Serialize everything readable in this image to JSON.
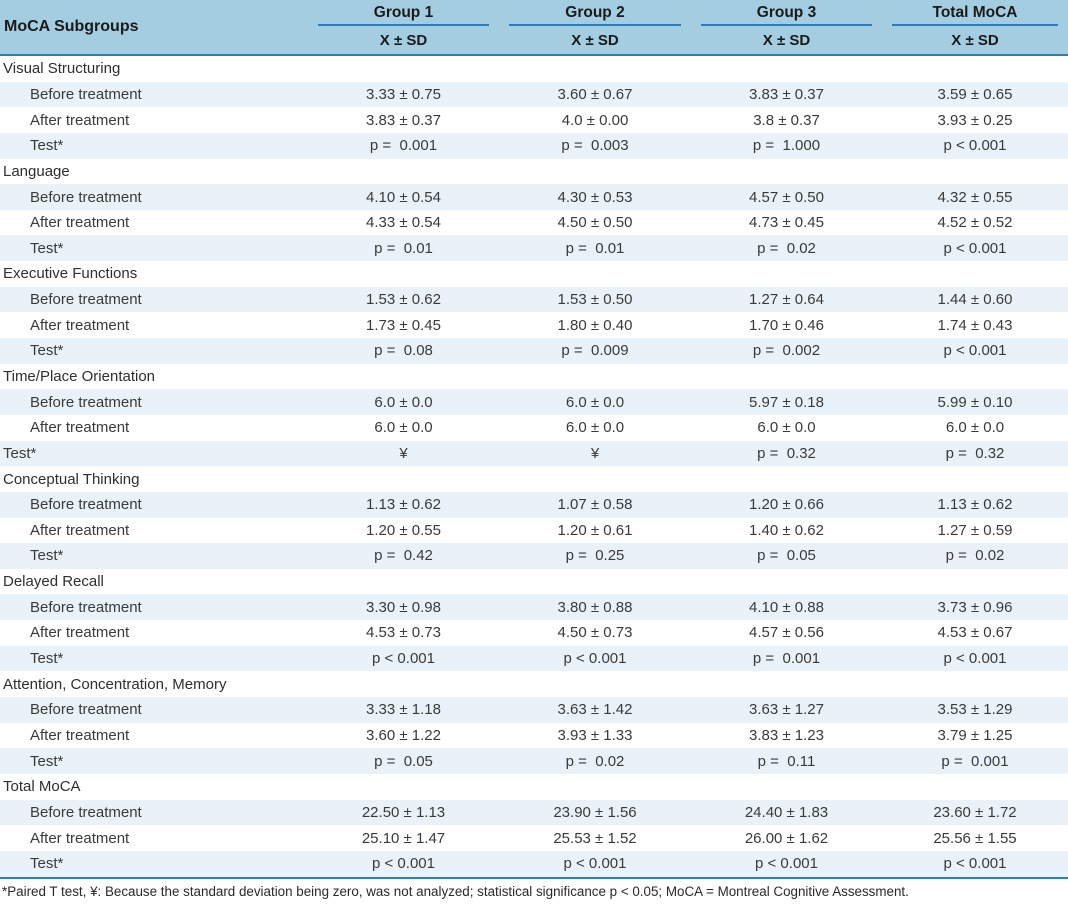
{
  "colors": {
    "header_bg": "#a5cde2",
    "stripe_bg": "#e9f2f8",
    "group_underline": "#2e7cb4",
    "rule_teal": "#2a81ad",
    "text": "#3a3a3a",
    "heading_text": "#1a1a1a"
  },
  "table": {
    "corner_header": "MoCA Subgroups",
    "groups": [
      "Group 1",
      "Group 2",
      "Group 3",
      "Total MoCA"
    ],
    "subheader": "X ± SD",
    "row_labels": {
      "before": "Before treatment",
      "after": "After treatment",
      "test": "Test*"
    },
    "sections": [
      {
        "name": "Visual Structuring",
        "test_indented": true,
        "before": [
          "3.33 ± 0.75",
          "3.60 ± 0.67",
          "3.83 ± 0.37",
          "3.59 ± 0.65"
        ],
        "after": [
          "3.83 ± 0.37",
          "4.0 ± 0.00",
          "3.8 ± 0.37",
          "3.93 ± 0.25"
        ],
        "test": [
          "p =  0.001",
          "p =  0.003",
          "p =  1.000",
          "p < 0.001"
        ]
      },
      {
        "name": "Language",
        "test_indented": true,
        "before": [
          "4.10 ± 0.54",
          "4.30 ± 0.53",
          "4.57 ± 0.50",
          "4.32 ± 0.55"
        ],
        "after": [
          "4.33 ± 0.54",
          "4.50 ± 0.50",
          "4.73 ± 0.45",
          "4.52 ± 0.52"
        ],
        "test": [
          "p =  0.01",
          "p =  0.01",
          "p =  0.02",
          "p < 0.001"
        ]
      },
      {
        "name": "Executive Functions",
        "test_indented": true,
        "before": [
          "1.53 ± 0.62",
          "1.53 ± 0.50",
          "1.27 ± 0.64",
          "1.44 ± 0.60"
        ],
        "after": [
          "1.73 ± 0.45",
          "1.80 ± 0.40",
          "1.70 ± 0.46",
          "1.74 ± 0.43"
        ],
        "test": [
          "p =  0.08",
          "p =  0.009",
          "p =  0.002",
          "p < 0.001"
        ]
      },
      {
        "name": "Time/Place Orientation",
        "test_indented": false,
        "before": [
          "6.0 ± 0.0",
          "6.0 ± 0.0",
          "5.97 ± 0.18",
          "5.99 ± 0.10"
        ],
        "after": [
          "6.0 ± 0.0",
          "6.0 ± 0.0",
          "6.0 ± 0.0",
          "6.0 ± 0.0"
        ],
        "test": [
          "¥",
          "¥",
          "p =  0.32",
          "p =  0.32"
        ]
      },
      {
        "name": "Conceptual Thinking",
        "test_indented": true,
        "before": [
          "1.13 ± 0.62",
          "1.07 ± 0.58",
          "1.20 ± 0.66",
          "1.13 ± 0.62"
        ],
        "after": [
          "1.20 ± 0.55",
          "1.20 ± 0.61",
          "1.40 ± 0.62",
          "1.27 ± 0.59"
        ],
        "test": [
          "p =  0.42",
          "p =  0.25",
          "p =  0.05",
          "p =  0.02"
        ]
      },
      {
        "name": "Delayed Recall",
        "test_indented": true,
        "before": [
          "3.30 ± 0.98",
          "3.80 ± 0.88",
          "4.10 ± 0.88",
          "3.73 ± 0.96"
        ],
        "after": [
          "4.53 ± 0.73",
          "4.50 ± 0.73",
          "4.57 ± 0.56",
          "4.53 ± 0.67"
        ],
        "test": [
          "p < 0.001",
          "p < 0.001",
          "p =  0.001",
          "p < 0.001"
        ]
      },
      {
        "name": "Attention, Concentration, Memory",
        "test_indented": true,
        "before": [
          "3.33 ± 1.18",
          "3.63 ± 1.42",
          "3.63 ± 1.27",
          "3.53 ± 1.29"
        ],
        "after": [
          "3.60 ± 1.22",
          "3.93 ± 1.33",
          "3.83 ± 1.23",
          "3.79 ± 1.25"
        ],
        "test": [
          "p =  0.05",
          "p =  0.02",
          "p =  0.11",
          "p =  0.001"
        ]
      },
      {
        "name": "Total MoCA",
        "test_indented": true,
        "before": [
          "22.50 ± 1.13",
          "23.90 ± 1.56",
          "24.40 ± 1.83",
          "23.60 ± 1.72"
        ],
        "after": [
          "25.10 ± 1.47",
          "25.53 ± 1.52",
          "26.00 ± 1.62",
          "25.56 ± 1.55"
        ],
        "test": [
          "p < 0.001",
          "p < 0.001",
          "p < 0.001",
          "p < 0.001"
        ]
      }
    ],
    "footnote": "*Paired T test, ¥: Because the standard deviation being zero, was not analyzed; statistical significance p < 0.05; MoCA = Montreal Cognitive Assessment."
  }
}
